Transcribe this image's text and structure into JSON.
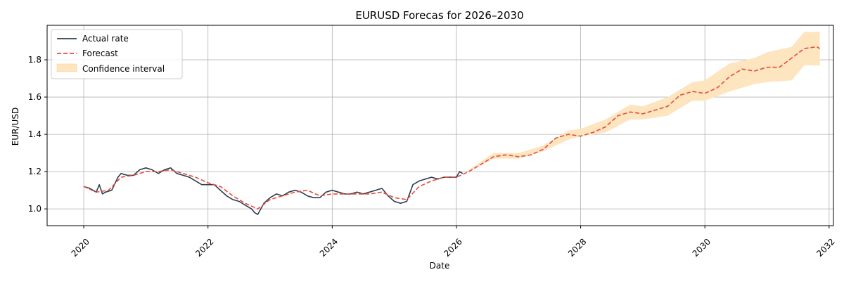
{
  "chart_data": {
    "type": "line",
    "title": "EURUSD Forecas for 2026–2030",
    "xlabel": "Date",
    "ylabel": "EUR/USD",
    "xlim": [
      2019.41,
      2032.07
    ],
    "ylim": [
      0.91,
      1.985
    ],
    "x_ticks": [
      2020,
      2022,
      2024,
      2026,
      2028,
      2030,
      2032
    ],
    "x_tick_labels": [
      "2020",
      "2022",
      "2024",
      "2026",
      "2028",
      "2030",
      "2032"
    ],
    "y_ticks": [
      1.0,
      1.2,
      1.4,
      1.6,
      1.8
    ],
    "y_tick_labels": [
      "1.0",
      "1.2",
      "1.4",
      "1.6",
      "1.8"
    ],
    "grid": true,
    "legend_position": "top-left",
    "legend": [
      "Actual rate",
      "Forecast",
      "Confidence interval"
    ],
    "colors": {
      "actual": "#2c3e50",
      "forecast": "#e74c3c",
      "confidence": "#fde5c0"
    },
    "series": [
      {
        "name": "Actual rate",
        "style": "solid",
        "x": [
          2020.0,
          2020.1,
          2020.2,
          2020.25,
          2020.3,
          2020.35,
          2020.45,
          2020.55,
          2020.6,
          2020.7,
          2020.8,
          2020.9,
          2021.0,
          2021.1,
          2021.2,
          2021.3,
          2021.4,
          2021.5,
          2021.6,
          2021.7,
          2021.8,
          2021.9,
          2022.0,
          2022.1,
          2022.2,
          2022.3,
          2022.4,
          2022.5,
          2022.6,
          2022.7,
          2022.75,
          2022.8,
          2022.9,
          2023.0,
          2023.1,
          2023.2,
          2023.3,
          2023.4,
          2023.5,
          2023.6,
          2023.7,
          2023.8,
          2023.9,
          2024.0,
          2024.1,
          2024.2,
          2024.3,
          2024.4,
          2024.5,
          2024.6,
          2024.7,
          2024.8,
          2024.9,
          2025.0,
          2025.1,
          2025.2,
          2025.3,
          2025.4,
          2025.5,
          2025.6,
          2025.7,
          2025.8,
          2025.9,
          2026.0,
          2026.05,
          2026.1
        ],
        "y": [
          1.12,
          1.11,
          1.09,
          1.13,
          1.08,
          1.09,
          1.1,
          1.17,
          1.19,
          1.18,
          1.18,
          1.21,
          1.22,
          1.21,
          1.19,
          1.21,
          1.22,
          1.19,
          1.18,
          1.17,
          1.15,
          1.13,
          1.13,
          1.13,
          1.1,
          1.07,
          1.05,
          1.04,
          1.02,
          1.0,
          0.98,
          0.97,
          1.03,
          1.06,
          1.08,
          1.07,
          1.09,
          1.1,
          1.09,
          1.07,
          1.06,
          1.06,
          1.09,
          1.1,
          1.09,
          1.08,
          1.08,
          1.09,
          1.08,
          1.09,
          1.1,
          1.11,
          1.07,
          1.04,
          1.03,
          1.04,
          1.13,
          1.15,
          1.16,
          1.17,
          1.16,
          1.17,
          1.17,
          1.17,
          1.2,
          1.19
        ]
      },
      {
        "name": "Forecast",
        "style": "dashed",
        "x": [
          2020.0,
          2020.2,
          2020.4,
          2020.6,
          2020.8,
          2021.0,
          2021.2,
          2021.4,
          2021.6,
          2021.8,
          2022.0,
          2022.2,
          2022.4,
          2022.6,
          2022.8,
          2023.0,
          2023.2,
          2023.4,
          2023.6,
          2023.8,
          2024.0,
          2024.2,
          2024.4,
          2024.6,
          2024.8,
          2025.0,
          2025.2,
          2025.4,
          2025.6,
          2025.8,
          2026.0,
          2026.2,
          2026.4,
          2026.6,
          2026.8,
          2027.0,
          2027.2,
          2027.4,
          2027.6,
          2027.8,
          2028.0,
          2028.2,
          2028.4,
          2028.6,
          2028.8,
          2029.0,
          2029.2,
          2029.4,
          2029.6,
          2029.8,
          2030.0,
          2030.2,
          2030.4,
          2030.6,
          2030.8,
          2031.0,
          2031.2,
          2031.4,
          2031.6,
          2031.8,
          2031.85
        ],
        "y": [
          1.12,
          1.09,
          1.1,
          1.17,
          1.18,
          1.2,
          1.2,
          1.21,
          1.19,
          1.17,
          1.14,
          1.12,
          1.07,
          1.03,
          1.0,
          1.05,
          1.07,
          1.09,
          1.1,
          1.07,
          1.08,
          1.08,
          1.08,
          1.08,
          1.09,
          1.06,
          1.05,
          1.12,
          1.15,
          1.17,
          1.17,
          1.2,
          1.24,
          1.28,
          1.29,
          1.28,
          1.29,
          1.32,
          1.38,
          1.4,
          1.39,
          1.41,
          1.44,
          1.5,
          1.52,
          1.51,
          1.53,
          1.55,
          1.61,
          1.63,
          1.62,
          1.65,
          1.71,
          1.75,
          1.74,
          1.76,
          1.76,
          1.81,
          1.86,
          1.87,
          1.86
        ]
      },
      {
        "name": "Confidence interval",
        "style": "band",
        "x": [
          2026.2,
          2026.6,
          2027.0,
          2027.4,
          2027.8,
          2028.0,
          2028.4,
          2028.8,
          2029.0,
          2029.4,
          2029.8,
          2030.0,
          2030.4,
          2030.8,
          2031.0,
          2031.4,
          2031.6,
          2031.85
        ],
        "lower": [
          1.2,
          1.27,
          1.27,
          1.31,
          1.37,
          1.39,
          1.41,
          1.48,
          1.48,
          1.5,
          1.58,
          1.58,
          1.63,
          1.67,
          1.68,
          1.69,
          1.77,
          1.77
        ],
        "upper": [
          1.21,
          1.3,
          1.3,
          1.34,
          1.42,
          1.43,
          1.48,
          1.56,
          1.55,
          1.6,
          1.68,
          1.69,
          1.78,
          1.81,
          1.84,
          1.87,
          1.95,
          1.95
        ]
      }
    ]
  }
}
